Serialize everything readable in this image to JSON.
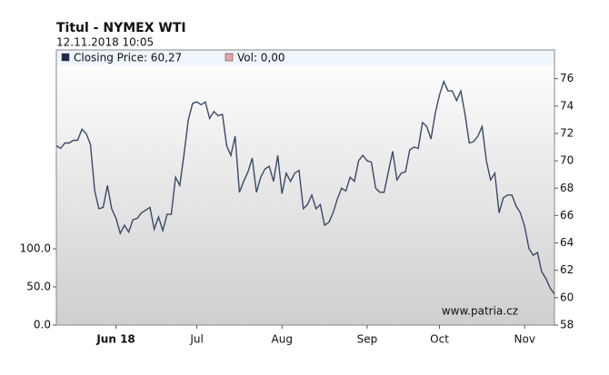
{
  "chart_data": {
    "type": "line",
    "title": "Titul - NYMEX WTI",
    "subtitle": "12.11.2018 10:05",
    "watermark": "www.patria.cz",
    "legend": [
      {
        "label": "Closing Price: 60,27",
        "color": "#1c2a4e"
      },
      {
        "label": "Vol: 0,00",
        "color": "#e8a4a4"
      }
    ],
    "categories": [
      null,
      null,
      null,
      null,
      null,
      null,
      null,
      null,
      null,
      null,
      null,
      null,
      null,
      null,
      "Jun 18",
      null,
      null,
      null,
      null,
      null,
      null,
      null,
      null,
      null,
      null,
      null,
      null,
      null,
      null,
      null,
      null,
      null,
      null,
      "Jul",
      null,
      null,
      null,
      null,
      null,
      null,
      null,
      null,
      null,
      null,
      null,
      null,
      null,
      null,
      null,
      null,
      null,
      null,
      null,
      "Aug",
      null,
      null,
      null,
      null,
      null,
      null,
      null,
      null,
      null,
      null,
      null,
      null,
      null,
      null,
      null,
      null,
      null,
      null,
      null,
      "Sep",
      null,
      null,
      null,
      null,
      null,
      null,
      null,
      null,
      null,
      null,
      null,
      null,
      null,
      null,
      null,
      null,
      "Oct",
      null,
      null,
      null,
      null,
      null,
      null,
      null,
      null,
      null,
      null,
      null,
      null,
      null,
      null,
      null,
      null,
      null,
      null,
      null,
      "Nov",
      null,
      null,
      null,
      null,
      null,
      null,
      null
    ],
    "series": [
      {
        "name": "Closing Price: 60,27",
        "color": "#3a4a66",
        "values": [
          71.1,
          70.9,
          71.3,
          71.3,
          71.5,
          71.5,
          72.3,
          72.0,
          71.2,
          67.8,
          66.5,
          66.6,
          68.2,
          66.5,
          65.8,
          64.7,
          65.3,
          64.8,
          65.7,
          65.8,
          66.2,
          66.4,
          66.6,
          65.0,
          65.9,
          64.9,
          66.1,
          66.1,
          68.8,
          68.2,
          70.5,
          73.0,
          74.2,
          74.3,
          74.1,
          74.3,
          73.1,
          73.6,
          73.3,
          73.4,
          71.1,
          70.4,
          71.8,
          67.7,
          68.5,
          69.2,
          70.2,
          67.7,
          68.8,
          69.4,
          69.6,
          68.5,
          70.4,
          67.6,
          69.1,
          68.5,
          69.1,
          69.3,
          66.5,
          66.8,
          67.5,
          66.5,
          66.8,
          65.3,
          65.5,
          66.2,
          67.2,
          68.0,
          67.8,
          68.8,
          68.5,
          70.0,
          70.4,
          70.0,
          69.9,
          68.0,
          67.7,
          67.7,
          69.2,
          70.7,
          68.6,
          69.1,
          69.2,
          70.8,
          71.0,
          70.9,
          72.8,
          72.5,
          71.6,
          73.5,
          74.8,
          75.8,
          75.1,
          75.1,
          74.4,
          75.1,
          73.4,
          71.3,
          71.4,
          71.8,
          72.5,
          70.0,
          68.6,
          69.1,
          66.2,
          67.3,
          67.5,
          67.5,
          66.7,
          66.2,
          65.2,
          63.6,
          63.1,
          63.3,
          61.9,
          61.4,
          60.7,
          60.27
        ]
      }
    ],
    "ylim": [
      58,
      78.1
    ],
    "yticks": [
      58,
      60,
      62,
      64,
      66,
      68,
      70,
      72,
      74,
      76
    ],
    "y2lim": [
      0,
      360.7
    ],
    "y2ticks": [
      {
        "value": 0,
        "label": "0.0"
      },
      {
        "value": 50,
        "label": "50.0"
      },
      {
        "value": 100,
        "label": "100.0"
      }
    ]
  }
}
